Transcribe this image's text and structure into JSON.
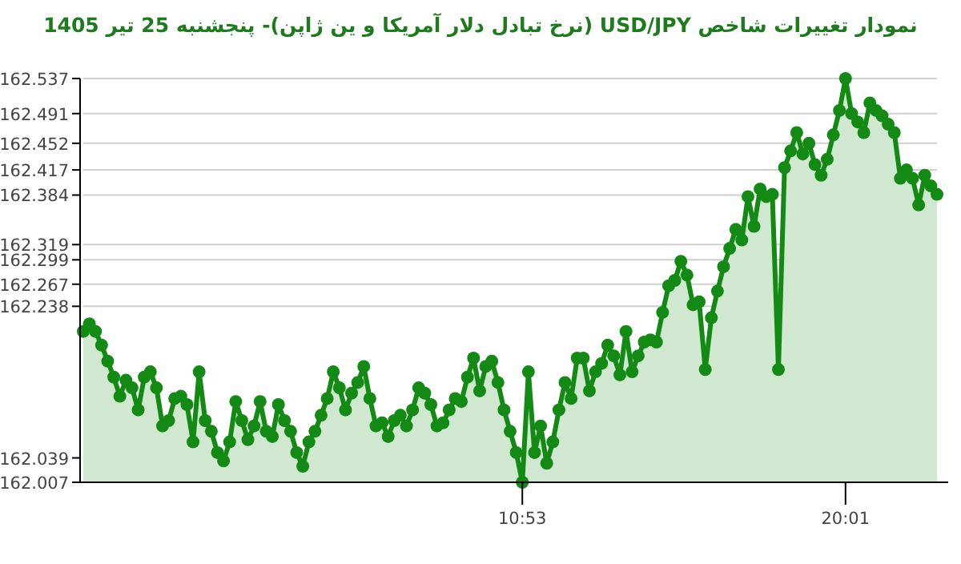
{
  "chart_data": {
    "type": "area",
    "title": "نمودار تغییرات شاخص USD/JPY (نرخ تبادل دلار آمریکا و ین ژاپن)- پنجشنبه  25 تیر 1405",
    "categories": [
      null,
      null,
      null,
      null,
      null,
      null,
      null,
      null,
      null,
      null,
      null,
      null,
      null,
      null,
      null,
      null,
      null,
      null,
      null,
      null,
      null,
      null,
      null,
      null,
      null,
      null,
      null,
      null,
      null,
      null,
      null,
      null,
      null,
      null,
      null,
      null,
      null,
      null,
      null,
      null,
      null,
      null,
      null,
      null,
      null,
      null,
      null,
      null,
      null,
      null,
      null,
      null,
      null,
      null,
      null,
      null,
      null,
      null,
      null,
      null,
      null,
      null,
      null,
      null,
      null,
      null,
      null,
      null,
      null,
      null,
      null,
      null,
      "10:53",
      null,
      null,
      null,
      null,
      null,
      null,
      null,
      null,
      null,
      null,
      null,
      null,
      null,
      null,
      null,
      null,
      null,
      null,
      null,
      null,
      null,
      null,
      null,
      null,
      null,
      null,
      null,
      null,
      null,
      null,
      null,
      null,
      null,
      null,
      null,
      null,
      null,
      null,
      null,
      null,
      null,
      null,
      null,
      null,
      null,
      null,
      null,
      null,
      null,
      null,
      null,
      null,
      "20:01",
      null,
      null,
      null,
      null,
      null,
      null,
      null,
      null,
      null,
      null,
      null,
      null,
      null,
      null,
      null
    ],
    "values": [
      162.205,
      162.215,
      162.205,
      162.187,
      162.166,
      162.145,
      162.12,
      162.141,
      162.131,
      162.102,
      162.145,
      162.152,
      162.131,
      162.081,
      162.088,
      162.117,
      162.12,
      162.109,
      162.06,
      162.152,
      162.088,
      162.074,
      162.046,
      162.035,
      162.06,
      162.113,
      162.088,
      162.063,
      162.081,
      162.113,
      162.074,
      162.067,
      162.109,
      162.088,
      162.074,
      162.046,
      162.028,
      162.06,
      162.074,
      162.095,
      162.117,
      162.152,
      162.131,
      162.102,
      162.124,
      162.138,
      162.159,
      162.117,
      162.081,
      162.085,
      162.067,
      162.088,
      162.095,
      162.081,
      162.102,
      162.131,
      162.124,
      162.109,
      162.081,
      162.085,
      162.102,
      162.117,
      162.113,
      162.145,
      162.17,
      162.127,
      162.159,
      162.166,
      162.138,
      162.102,
      162.074,
      162.046,
      162.007,
      162.152,
      162.046,
      162.081,
      162.032,
      162.06,
      162.102,
      162.138,
      162.117,
      162.17,
      162.17,
      162.127,
      162.152,
      162.163,
      162.187,
      162.173,
      162.148,
      162.205,
      162.152,
      162.173,
      162.191,
      162.194,
      162.191,
      162.23,
      162.265,
      162.272,
      162.297,
      162.279,
      162.24,
      162.244,
      162.155,
      162.223,
      162.258,
      162.29,
      162.314,
      162.339,
      162.325,
      162.382,
      162.343,
      162.392,
      162.382,
      162.385,
      162.155,
      162.42,
      162.442,
      162.466,
      162.438,
      162.452,
      162.424,
      162.41,
      162.431,
      162.463,
      162.495,
      162.537,
      162.491,
      162.48,
      162.466,
      162.505,
      162.495,
      162.488,
      162.477,
      162.466,
      162.406,
      162.417,
      162.406,
      162.371,
      162.41,
      162.396,
      162.385
    ],
    "color": "#138a13",
    "ylim": [
      162.007,
      162.537
    ],
    "yticks": [
      162.007,
      162.039,
      162.238,
      162.267,
      162.299,
      162.319,
      162.384,
      162.417,
      162.452,
      162.491,
      162.537
    ],
    "grid": "y",
    "marker": "circle"
  }
}
